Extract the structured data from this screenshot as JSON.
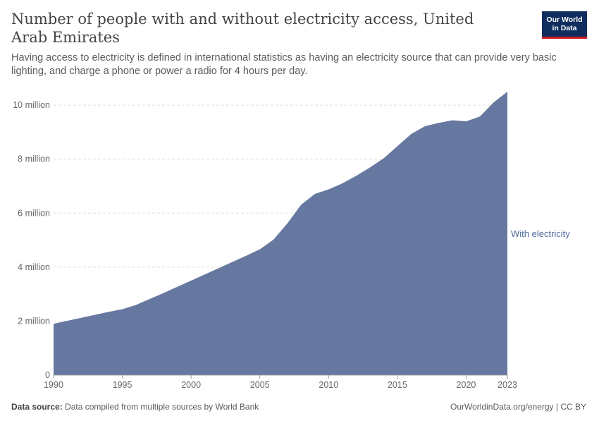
{
  "header": {
    "title": "Number of people with and without electricity access, United Arab Emirates",
    "subtitle": "Having access to electricity is defined in international statistics as having an electricity source that can provide very basic lighting, and charge a phone or power a radio for 4 hours per day."
  },
  "logo": {
    "line1": "Our World",
    "line2": "in Data"
  },
  "footer": {
    "source_label": "Data source:",
    "source_text": "Data compiled from multiple sources by World Bank",
    "credit": "OurWorldinData.org/energy | CC BY"
  },
  "colors": {
    "area": "#66789f",
    "grid": "#dddddd",
    "series_label": "#4c6a9c",
    "axis": "#666666"
  },
  "chart_data": {
    "type": "area",
    "title": "Number of people with and without electricity access, United Arab Emirates",
    "xlabel": "",
    "ylabel": "",
    "xlim": [
      1990,
      2023
    ],
    "ylim": [
      0,
      10500000
    ],
    "grid": true,
    "x_ticks": [
      1990,
      1995,
      2000,
      2005,
      2010,
      2015,
      2020,
      2023
    ],
    "y_ticks": [
      {
        "value": 0,
        "label": "0"
      },
      {
        "value": 2000000,
        "label": "2 million"
      },
      {
        "value": 4000000,
        "label": "4 million"
      },
      {
        "value": 6000000,
        "label": "6 million"
      },
      {
        "value": 8000000,
        "label": "8 million"
      },
      {
        "value": 10000000,
        "label": "10 million"
      }
    ],
    "series": [
      {
        "name": "With electricity",
        "x": [
          1990,
          1991,
          1992,
          1993,
          1994,
          1995,
          1996,
          1997,
          1998,
          1999,
          2000,
          2001,
          2002,
          2003,
          2004,
          2005,
          2006,
          2007,
          2008,
          2009,
          2010,
          2011,
          2012,
          2013,
          2014,
          2015,
          2016,
          2017,
          2018,
          2019,
          2020,
          2021,
          2022,
          2023
        ],
        "values": [
          1900000,
          2010000,
          2120000,
          2230000,
          2340000,
          2440000,
          2600000,
          2820000,
          3040000,
          3270000,
          3500000,
          3730000,
          3960000,
          4190000,
          4420000,
          4660000,
          5020000,
          5620000,
          6310000,
          6710000,
          6880000,
          7100000,
          7380000,
          7690000,
          8030000,
          8480000,
          8930000,
          9220000,
          9340000,
          9440000,
          9400000,
          9580000,
          10100000,
          10500000
        ]
      }
    ]
  }
}
